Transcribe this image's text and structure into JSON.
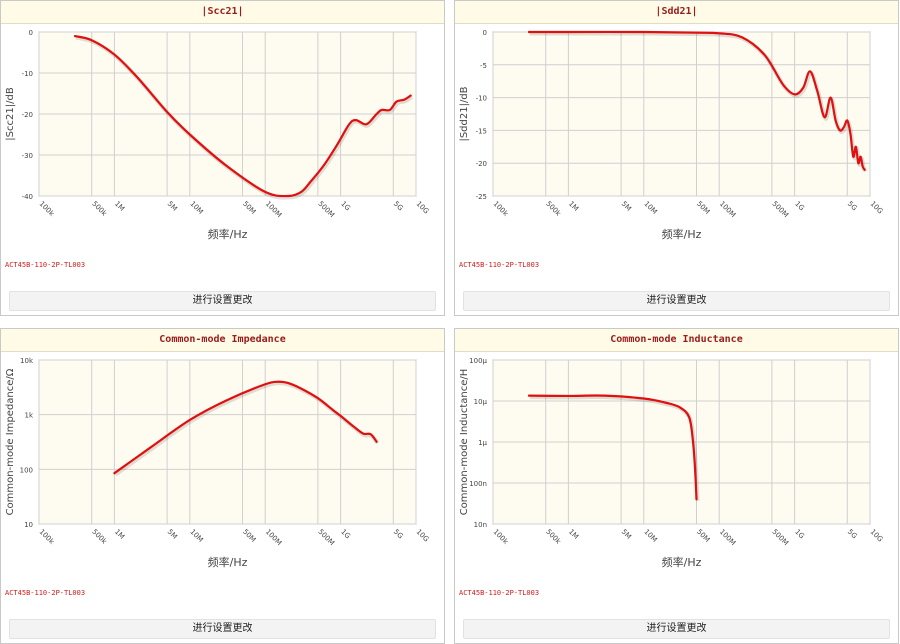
{
  "button_label": "进行设置更改",
  "model": "ACT45B-110-2P-TL003",
  "xlabel": "频率/Hz",
  "colors": {
    "curve": "#e10f0f",
    "plot_bg": "#fefbf0",
    "grid": "#d0d0d0",
    "title_text": "#9b1b1b",
    "title_bg": "#fffbe6"
  },
  "chart_data": [
    {
      "type": "line",
      "title": "|Scc21|",
      "ylabel": "|Scc21|/dB",
      "yscale": "linear",
      "xscale": "log",
      "grid": true,
      "xlim": [
        100000,
        10000000000
      ],
      "ylim": [
        -40,
        0
      ],
      "x_ticks": [
        100000,
        500000,
        1000000,
        5000000,
        10000000,
        50000000,
        100000000,
        500000000,
        1000000000,
        5000000000,
        10000000000
      ],
      "x_tick_labels": [
        "100k",
        "500k",
        "1M",
        "5M",
        "10M",
        "50M",
        "100M",
        "500M",
        "1G",
        "5G",
        "10G"
      ],
      "y_ticks": [
        0,
        -10,
        -20,
        -30,
        -40
      ],
      "y_tick_labels": [
        "0",
        "-10",
        "-20",
        "-30",
        "-40"
      ],
      "series": [
        {
          "x": [
            300000,
            500000,
            1000000,
            2000000,
            5000000,
            10000000,
            30000000,
            100000000,
            200000000,
            300000000,
            400000000,
            600000000,
            900000000,
            1300000000,
            1600000000,
            2200000000,
            3000000000,
            3500000000,
            4500000000,
            5500000000,
            7000000000,
            8500000000
          ],
          "y": [
            -1,
            -2,
            -5.5,
            -11,
            -19.5,
            -25,
            -32.5,
            -39,
            -40,
            -39,
            -36.5,
            -32.5,
            -27.5,
            -22.5,
            -21.5,
            -22.5,
            -20,
            -19,
            -19,
            -17,
            -16.5,
            -15.5
          ]
        }
      ]
    },
    {
      "type": "line",
      "title": "|Sdd21|",
      "ylabel": "|Sdd21|/dB",
      "yscale": "linear",
      "xscale": "log",
      "grid": true,
      "xlim": [
        100000,
        10000000000
      ],
      "ylim": [
        -25,
        0
      ],
      "x_ticks": [
        100000,
        500000,
        1000000,
        5000000,
        10000000,
        50000000,
        100000000,
        500000000,
        1000000000,
        5000000000,
        10000000000
      ],
      "x_tick_labels": [
        "100k",
        "500k",
        "1M",
        "5M",
        "10M",
        "50M",
        "100M",
        "500M",
        "1G",
        "5G",
        "10G"
      ],
      "y_ticks": [
        0,
        -5,
        -10,
        -15,
        -20,
        -25
      ],
      "y_tick_labels": [
        "0",
        "-5",
        "-10",
        "-15",
        "-20",
        "-25"
      ],
      "series": [
        {
          "x": [
            300000,
            1000000,
            10000000,
            50000000,
            100000000,
            200000000,
            400000000,
            700000000,
            1000000000,
            1300000000,
            1600000000,
            2000000000,
            2500000000,
            3000000000,
            3500000000,
            4000000000,
            4500000000,
            5000000000,
            5500000000,
            6000000000,
            6500000000,
            7000000000,
            7500000000,
            8000000000,
            8500000000
          ],
          "y": [
            0,
            0,
            0,
            -0.1,
            -0.2,
            -0.8,
            -3.5,
            -8,
            -9.5,
            -8.5,
            -6,
            -9,
            -13,
            -10,
            -13.5,
            -15,
            -14.5,
            -13.5,
            -15.5,
            -19,
            -17.5,
            -20,
            -19,
            -20.5,
            -21
          ]
        }
      ]
    },
    {
      "type": "line",
      "title": "Common-mode Impedance",
      "ylabel": "Common-mode Impedance/Ω",
      "yscale": "log",
      "xscale": "log",
      "grid": true,
      "xlim": [
        100000,
        10000000000
      ],
      "ylim": [
        10,
        10000
      ],
      "x_ticks": [
        100000,
        500000,
        1000000,
        5000000,
        10000000,
        50000000,
        100000000,
        500000000,
        1000000000,
        5000000000,
        10000000000
      ],
      "x_tick_labels": [
        "100k",
        "500k",
        "1M",
        "5M",
        "10M",
        "50M",
        "100M",
        "500M",
        "1G",
        "5G",
        "10G"
      ],
      "y_ticks": [
        10,
        100,
        1000,
        10000
      ],
      "y_tick_labels": [
        "10",
        "100",
        "1k",
        "10k"
      ],
      "series": [
        {
          "x": [
            1000000,
            3000000,
            10000000,
            30000000,
            100000000,
            150000000,
            200000000,
            300000000,
            500000000,
            800000000,
            1000000000,
            1500000000,
            2000000000,
            2500000000,
            3000000000
          ],
          "y": [
            85,
            250,
            800,
            1800,
            3600,
            4000,
            3800,
            3000,
            2000,
            1200,
            950,
            600,
            450,
            440,
            320
          ]
        }
      ]
    },
    {
      "type": "line",
      "title": "Common-mode Inductance",
      "ylabel": "Common-mode Inductance/H",
      "yscale": "log",
      "xscale": "log",
      "grid": true,
      "xlim": [
        100000,
        10000000000
      ],
      "ylim": [
        1e-08,
        0.0001
      ],
      "x_ticks": [
        100000,
        500000,
        1000000,
        5000000,
        10000000,
        50000000,
        100000000,
        500000000,
        1000000000,
        5000000000,
        10000000000
      ],
      "x_tick_labels": [
        "100k",
        "500k",
        "1M",
        "5M",
        "10M",
        "50M",
        "100M",
        "500M",
        "1G",
        "5G",
        "10G"
      ],
      "y_ticks": [
        1e-08,
        1e-07,
        1e-06,
        1e-05,
        0.0001
      ],
      "y_tick_labels": [
        "10n",
        "100n",
        "1μ",
        "10μ",
        "100μ"
      ],
      "series": [
        {
          "x": [
            300000,
            1000000,
            3000000,
            10000000,
            20000000,
            30000000,
            40000000,
            45000000,
            48000000,
            50000000
          ],
          "y": [
            1.35e-05,
            1.33e-05,
            1.35e-05,
            1.15e-05,
            9e-06,
            7e-06,
            4e-06,
            1e-06,
            2e-07,
            4e-08
          ]
        }
      ]
    }
  ]
}
